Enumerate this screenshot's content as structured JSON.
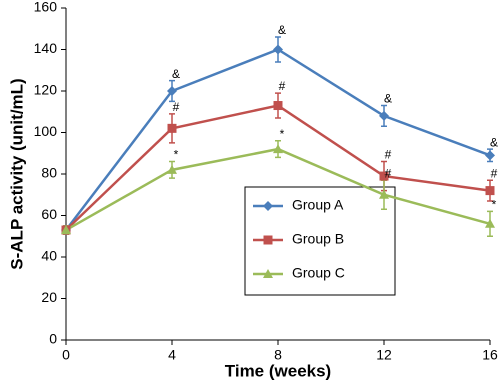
{
  "chart_data": {
    "type": "line",
    "x": [
      0,
      4,
      8,
      12,
      16
    ],
    "xlabel": "Time (weeks)",
    "ylabel": "S-ALP activity (unit/mL)",
    "xlim": [
      0,
      16
    ],
    "xticks": [
      0,
      4,
      8,
      12,
      16
    ],
    "ylim": [
      0,
      160
    ],
    "yticks": [
      0,
      20,
      40,
      60,
      80,
      100,
      120,
      140,
      160
    ],
    "grid": false,
    "series": [
      {
        "name": "Group A",
        "color": "#4a7ebb",
        "marker": "diamond",
        "values": [
          53,
          120,
          140,
          108,
          89
        ],
        "errors": [
          2,
          5,
          6,
          5,
          3
        ],
        "annotations": [
          null,
          "&",
          "&",
          "&",
          "&"
        ]
      },
      {
        "name": "Group B",
        "color": "#c0504d",
        "marker": "square",
        "values": [
          53,
          102,
          113,
          79,
          72
        ],
        "errors": [
          2,
          7,
          6,
          7,
          5
        ],
        "annotations": [
          null,
          "#",
          "#",
          "#",
          "#"
        ]
      },
      {
        "name": "Group C",
        "color": "#9bbb59",
        "marker": "triangle",
        "values": [
          53,
          82,
          92,
          70,
          56
        ],
        "errors": [
          2,
          4,
          4,
          7,
          6
        ],
        "annotations": [
          null,
          "*",
          "*",
          "#",
          "*"
        ]
      }
    ]
  }
}
